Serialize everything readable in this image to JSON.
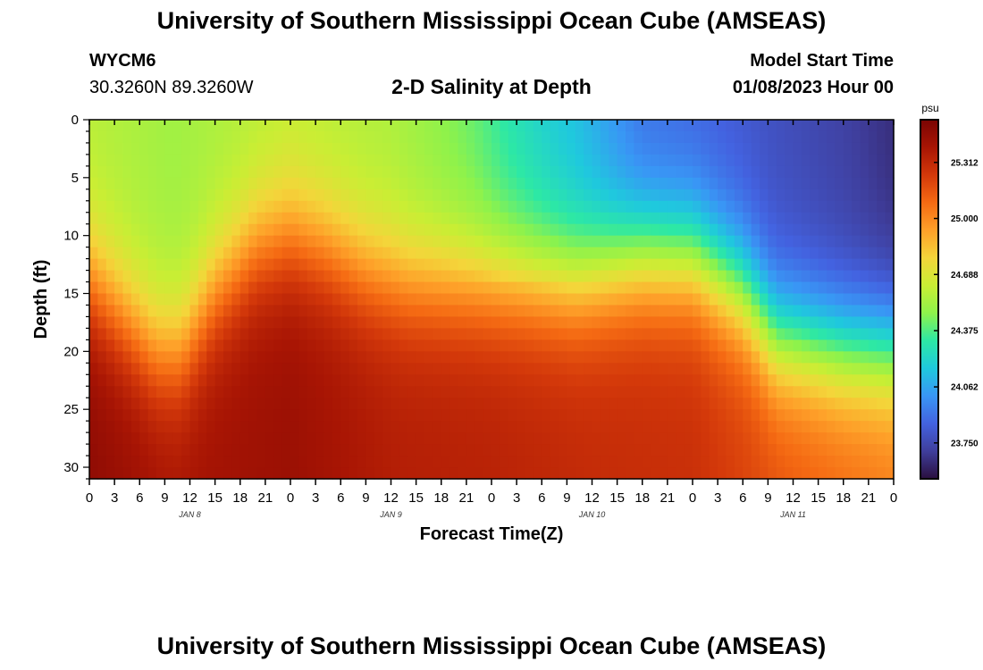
{
  "header": {
    "title": "University of Southern Mississippi Ocean Cube (AMSEAS)",
    "station": "WYCM6",
    "coords": "30.3260N  89.3260W",
    "subtitle": "2-D Salinity at Depth",
    "model_start_label": "Model Start Time",
    "model_start_value": "01/08/2023 Hour 00"
  },
  "footer": {
    "title": "University of Southern Mississippi Ocean Cube (AMSEAS)"
  },
  "chart_data": {
    "type": "heatmap",
    "title": "2-D Salinity at Depth",
    "xlabel": "Forecast Time(Z)",
    "ylabel": "Depth (ft)",
    "x_range_hours": [
      0,
      96
    ],
    "y_range_ft": [
      0,
      31
    ],
    "x_tick_labels": [
      "0",
      "3",
      "6",
      "9",
      "12",
      "15",
      "18",
      "21",
      "0",
      "3",
      "6",
      "9",
      "12",
      "15",
      "18",
      "21",
      "0",
      "3",
      "6",
      "9",
      "12",
      "15",
      "18",
      "21",
      "0",
      "3",
      "6",
      "9",
      "12",
      "15",
      "18",
      "21",
      "0"
    ],
    "y_ticks": [
      0,
      5,
      10,
      15,
      20,
      25,
      30
    ],
    "date_labels": [
      {
        "hour": 12,
        "label": "JAN 8"
      },
      {
        "hour": 36,
        "label": "JAN 9"
      },
      {
        "hour": 60,
        "label": "JAN 10"
      },
      {
        "hour": 84,
        "label": "JAN 11"
      }
    ],
    "colorbar": {
      "unit": "psu",
      "min": 23.55,
      "max": 25.55,
      "tick_values": [
        25.312,
        25.0,
        24.688,
        24.375,
        24.062,
        23.75
      ],
      "tick_labels": [
        "25.312",
        "25.000",
        "24.688",
        "24.375",
        "24.062",
        "23.750"
      ],
      "colors": [
        "#2a0f3e",
        "#3f3e9c",
        "#4362e0",
        "#3996f5",
        "#1fc9dd",
        "#2de8a5",
        "#8ef24b",
        "#c9ee34",
        "#f4d53a",
        "#fea029",
        "#f56a13",
        "#d3380a",
        "#a81504",
        "#7a0403"
      ]
    },
    "halocline_depth_ft": [
      {
        "hour": 0,
        "depth": 14
      },
      {
        "hour": 4,
        "depth": 17
      },
      {
        "hour": 8,
        "depth": 20
      },
      {
        "hour": 11,
        "depth": 20
      },
      {
        "hour": 15,
        "depth": 15
      },
      {
        "hour": 20,
        "depth": 11
      },
      {
        "hour": 24,
        "depth": 10
      },
      {
        "hour": 28,
        "depth": 11
      },
      {
        "hour": 33,
        "depth": 13
      },
      {
        "hour": 38,
        "depth": 14
      },
      {
        "hour": 48,
        "depth": 14
      },
      {
        "hour": 58,
        "depth": 14
      },
      {
        "hour": 66,
        "depth": 12
      },
      {
        "hour": 72,
        "depth": 12
      },
      {
        "hour": 78,
        "depth": 15
      },
      {
        "hour": 82,
        "depth": 19
      },
      {
        "hour": 90,
        "depth": 20
      },
      {
        "hour": 96,
        "depth": 20
      }
    ],
    "surface_salinity_psu": [
      {
        "hour": 0,
        "value": 24.58
      },
      {
        "hour": 10,
        "value": 24.52
      },
      {
        "hour": 24,
        "value": 24.6
      },
      {
        "hour": 36,
        "value": 24.55
      },
      {
        "hour": 46,
        "value": 24.42
      },
      {
        "hour": 52,
        "value": 24.3
      },
      {
        "hour": 58,
        "value": 24.15
      },
      {
        "hour": 66,
        "value": 23.9
      },
      {
        "hour": 74,
        "value": 23.85
      },
      {
        "hour": 82,
        "value": 23.78
      },
      {
        "hour": 90,
        "value": 23.72
      },
      {
        "hour": 96,
        "value": 23.65
      }
    ],
    "bottom_salinity_psu": [
      {
        "hour": 0,
        "value": 25.48
      },
      {
        "hour": 10,
        "value": 25.4
      },
      {
        "hour": 24,
        "value": 25.44
      },
      {
        "hour": 36,
        "value": 25.36
      },
      {
        "hour": 48,
        "value": 25.34
      },
      {
        "hour": 60,
        "value": 25.3
      },
      {
        "hour": 72,
        "value": 25.28
      },
      {
        "hour": 84,
        "value": 25.15
      },
      {
        "hour": 96,
        "value": 25.05
      }
    ]
  }
}
